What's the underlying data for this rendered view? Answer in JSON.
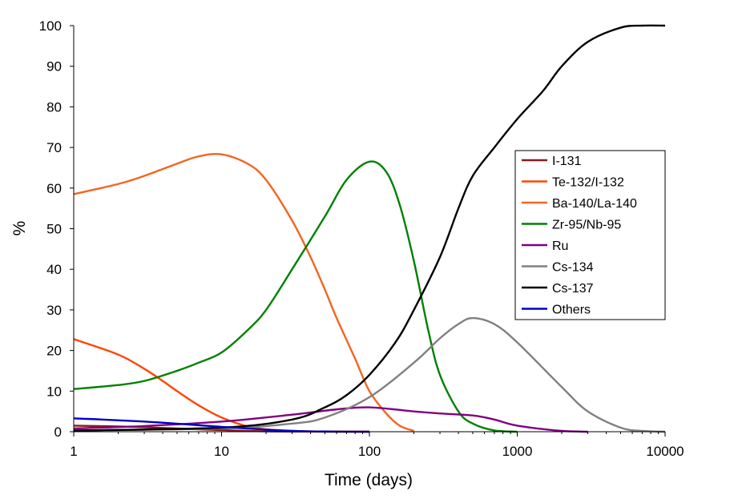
{
  "chart_data": {
    "type": "line",
    "xlabel": "Time (days)",
    "ylabel": "%",
    "xscale": "log",
    "xlim": [
      1,
      10000
    ],
    "ylim": [
      0,
      100
    ],
    "grid": false,
    "legend_position": "right",
    "x_ticks": [
      "1",
      "10",
      "100",
      "1000",
      "10000"
    ],
    "y_ticks": [
      "0",
      "10",
      "20",
      "30",
      "40",
      "50",
      "60",
      "70",
      "80",
      "90",
      "100"
    ],
    "series": [
      {
        "name": "I-131",
        "color": "#8b1a1a",
        "x": [
          1,
          2,
          3,
          5,
          8,
          10,
          15,
          20,
          30,
          50,
          70,
          100
        ],
        "y": [
          1.5,
          1.3,
          1.1,
          0.8,
          0.5,
          0.4,
          0.2,
          0.1,
          0.05,
          0.02,
          0.01,
          0
        ]
      },
      {
        "name": "Te-132/I-132",
        "color": "#ff4500",
        "x": [
          1,
          2,
          3,
          4,
          5,
          7,
          10,
          15,
          20,
          30,
          50,
          100
        ],
        "y": [
          22.8,
          19,
          15.5,
          12.5,
          10,
          6.5,
          3.5,
          1.3,
          0.6,
          0.2,
          0.05,
          0
        ]
      },
      {
        "name": "Ba-140/La-140",
        "color": "#f26522",
        "x": [
          1,
          2,
          3,
          5,
          7,
          10,
          15,
          20,
          30,
          40,
          50,
          60,
          80,
          100,
          130,
          160,
          200
        ],
        "y": [
          58.5,
          61,
          63,
          66,
          67.8,
          68.3,
          66,
          62,
          52,
          43,
          35,
          28,
          18,
          10,
          4.5,
          1.5,
          0.2
        ]
      },
      {
        "name": "Zr-95/Nb-95",
        "color": "#008000",
        "x": [
          1,
          2,
          3,
          5,
          7,
          10,
          15,
          20,
          30,
          50,
          70,
          100,
          130,
          160,
          200,
          250,
          300,
          400,
          500,
          700,
          1000
        ],
        "y": [
          10.5,
          11.5,
          12.5,
          15,
          17,
          19.5,
          25,
          30,
          40,
          53,
          62,
          66.5,
          64,
          56,
          42,
          25,
          14,
          5,
          2,
          0.3,
          0
        ]
      },
      {
        "name": "Ru",
        "color": "#800080",
        "x": [
          1,
          3,
          10,
          30,
          60,
          100,
          200,
          300,
          500,
          700,
          1000,
          2000,
          3000
        ],
        "y": [
          0.8,
          1.4,
          2.5,
          4.2,
          5.5,
          6,
          5,
          4.5,
          4,
          3,
          1.5,
          0.2,
          0
        ]
      },
      {
        "name": "Cs-134",
        "color": "#808080",
        "x": [
          1,
          10,
          30,
          50,
          100,
          200,
          300,
          400,
          500,
          700,
          1000,
          2000,
          3000,
          5000,
          7000,
          10000
        ],
        "y": [
          0.3,
          0.8,
          2,
          3.5,
          8.5,
          17,
          23,
          26.5,
          28,
          26.5,
          22,
          11,
          5,
          1,
          0.2,
          0
        ]
      },
      {
        "name": "Cs-137",
        "color": "#000000",
        "x": [
          1,
          10,
          30,
          50,
          70,
          100,
          150,
          200,
          300,
          400,
          500,
          700,
          1000,
          1500,
          2000,
          3000,
          5000,
          7000,
          10000
        ],
        "y": [
          0.3,
          1,
          3,
          6,
          9,
          14,
          22,
          30,
          43,
          55,
          63,
          70,
          77,
          84,
          90,
          96,
          99.5,
          100,
          100
        ]
      },
      {
        "name": "Others",
        "color": "#0000c8",
        "x": [
          1,
          3,
          10,
          20,
          30,
          50,
          100
        ],
        "y": [
          3.3,
          2.5,
          1.2,
          0.5,
          0.2,
          0.05,
          0
        ]
      }
    ]
  }
}
